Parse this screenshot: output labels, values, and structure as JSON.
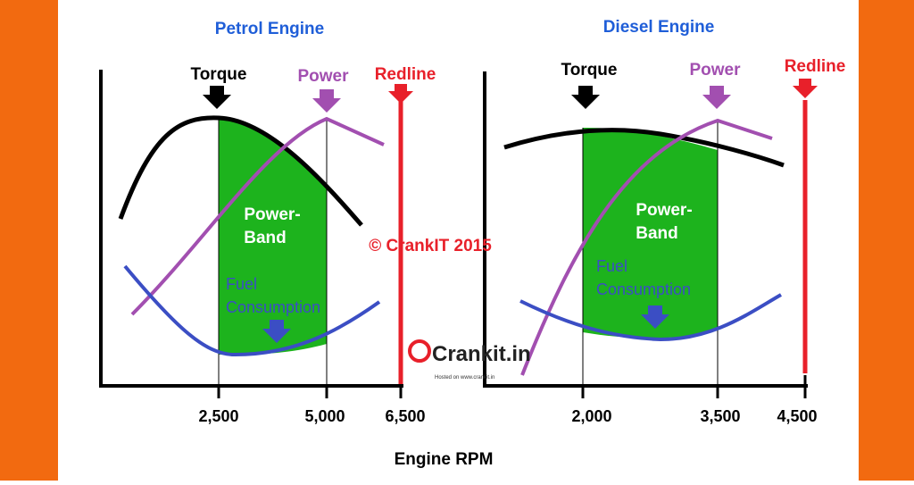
{
  "panels": [
    {
      "title": "Petrol Engine",
      "torque": "Torque",
      "power": "Power",
      "redline": "Redline",
      "band": [
        "Power-",
        "Band"
      ],
      "fuel": [
        "Fuel",
        "Consumption"
      ],
      "ticks": [
        "2,500",
        "5,000",
        "6,500"
      ]
    },
    {
      "title": "Diesel Engine",
      "torque": "Torque",
      "power": "Power",
      "redline": "Redline",
      "band": [
        "Power-",
        "Band"
      ],
      "fuel": [
        "Fuel",
        "Consumption"
      ],
      "ticks": [
        "2,000",
        "3,500",
        "4,500"
      ]
    }
  ],
  "copyright": "© CrankIT 2015",
  "logo": {
    "name": "Crankit.in",
    "hosted": "Hosted on www.crankit.in"
  },
  "x_label": "Engine RPM"
}
